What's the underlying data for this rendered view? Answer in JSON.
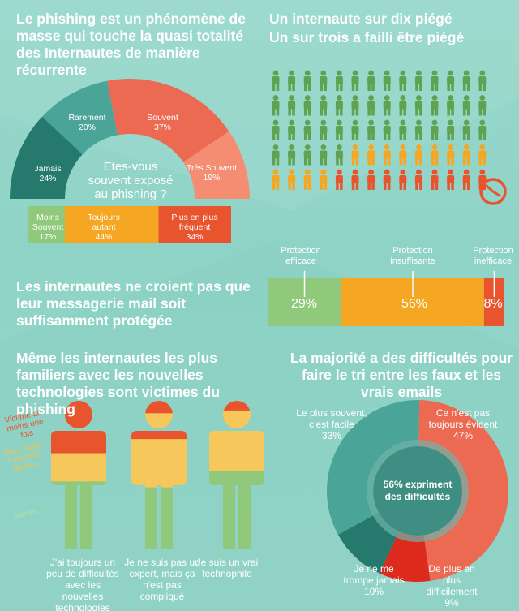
{
  "colors": {
    "dark_teal": "#267a6d",
    "mid_teal": "#4aa497",
    "coral": "#ec6a52",
    "salmon": "#f48d72",
    "green": "#5fa352",
    "light_green": "#90c97b",
    "orange": "#f5a623",
    "yellow": "#f6c85b",
    "red_orange": "#e8542e",
    "red": "#dc2a1c",
    "light_text": "#ffffff"
  },
  "sections": {
    "exposure": {
      "title": "Le phishing est un phénomène de masse qui touche la quasi totalité des Internautes de manière récurrente",
      "question": "Etes-vous souvent exposé au phishing ?"
    },
    "trapped": {
      "title_line1": "Un internaute sur dix piégé",
      "title_line2": "Un sur trois a failli être piégé",
      "icon": "clock-icon"
    },
    "protection": {
      "title": "Les internautes ne croient pas que leur messagerie mail soit suffisamment protégée"
    },
    "familiar": {
      "title": "Même les internautes les plus  familiers avec les nouvelles technologies sont victimes du phishing",
      "legend_victim": "Victime au moins une fois",
      "legend_almost": "Non, mais il s'en fut de peu",
      "legend_never": "Jamais"
    },
    "difficulty": {
      "title": "La majorité a des difficultés pour faire le tri entre les faux et les vrais emails",
      "center": "56% expriment des difficultés"
    }
  },
  "chart_data": [
    {
      "type": "pie",
      "variant": "semi-donut",
      "question": "Etes-vous souvent exposé au phishing ?",
      "slices": [
        {
          "label": "Jamais",
          "value": 24,
          "display": "24%"
        },
        {
          "label": "Rarement",
          "value": 20,
          "display": "20%"
        },
        {
          "label": "Souvent",
          "value": 37,
          "display": "37%"
        },
        {
          "label": "Très Souvent",
          "value": 19,
          "display": "19%"
        }
      ]
    },
    {
      "type": "bar",
      "variant": "stacked-horizontal",
      "segments": [
        {
          "label": "Moins Souvent",
          "value": 17,
          "display": "17%",
          "color": "#90c97b"
        },
        {
          "label": "Toujours autant",
          "value": 44,
          "display": "44%",
          "color": "#f5a623"
        },
        {
          "label": "Plus en plus fréquent",
          "value": 34,
          "display": "34%",
          "color": "#e8542e"
        }
      ]
    },
    {
      "type": "table",
      "variant": "pictogram",
      "rows": 5,
      "cols": 14,
      "groups": [
        {
          "count": 47,
          "color": "#5fa352"
        },
        {
          "count": 13,
          "color": "#f5a623"
        },
        {
          "count": 10,
          "color": "#e8542e"
        }
      ]
    },
    {
      "type": "bar",
      "variant": "stacked-horizontal",
      "segments": [
        {
          "label": "Protection efficace",
          "value": 29,
          "display": "29%",
          "color": "#90c97b"
        },
        {
          "label": "Protection insuffisante",
          "value": 56,
          "display": "56%",
          "color": "#f5a623"
        },
        {
          "label": "Protection inefficace",
          "value": 8,
          "display": "8%",
          "color": "#e8542e"
        }
      ]
    },
    {
      "type": "bar",
      "variant": "person-fill",
      "figures": [
        {
          "label": "J'ai toujours un peu de difficultés avec les nouvelles technologies",
          "victime": 0.19,
          "presque": 0.24
        },
        {
          "label": "Je ne suis pas un expert, mais ça n'est pas compliqué",
          "victime": 0.07,
          "presque": 0.41
        },
        {
          "label": "Je suis un vrai technophile",
          "victime": 0.0,
          "presque": 0.34
        }
      ]
    },
    {
      "type": "pie",
      "variant": "donut",
      "slices": [
        {
          "label": "Le plus souvent, c'est facile",
          "value": 33,
          "display": "33%"
        },
        {
          "label": "Ce n'est pas toujours évident",
          "value": 47,
          "display": "47%"
        },
        {
          "label": "De plus en plus difficilement",
          "value": 9,
          "display": "9%"
        },
        {
          "label": "Je ne me trompe jamais",
          "value": 10,
          "display": "10%"
        }
      ]
    }
  ]
}
